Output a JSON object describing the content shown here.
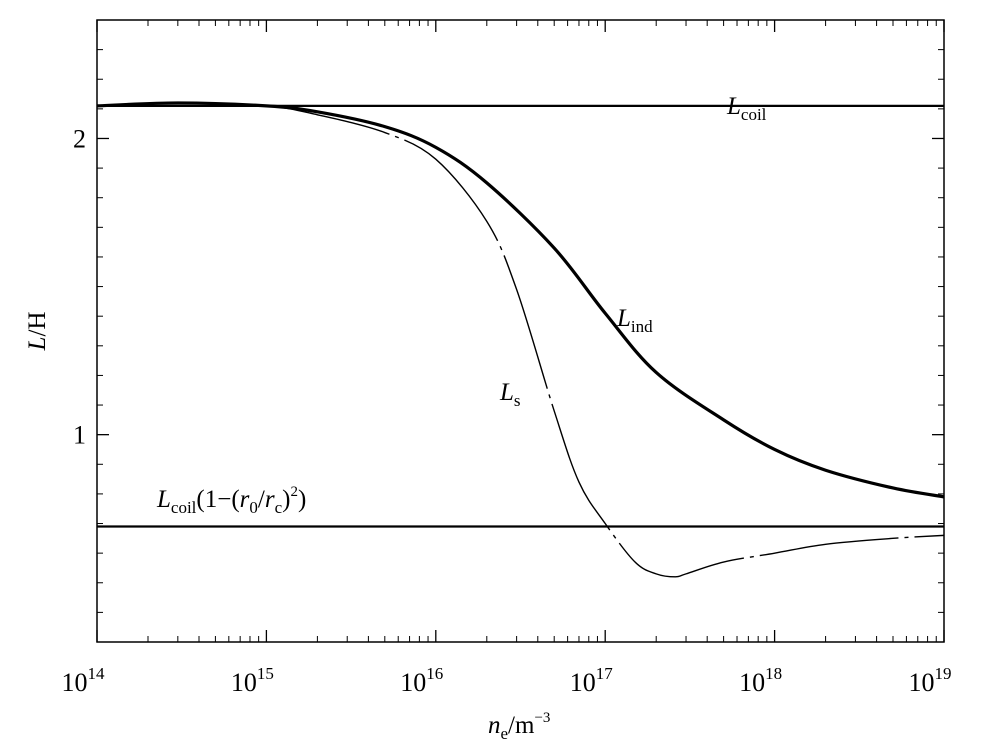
{
  "chart_data": {
    "type": "line",
    "xscale": "log",
    "xlim": [
      100000000000000.0,
      1e+19
    ],
    "ylim": [
      0.3,
      2.4
    ],
    "xticks": [
      {
        "base": "10",
        "exp": "14"
      },
      {
        "base": "10",
        "exp": "15"
      },
      {
        "base": "10",
        "exp": "16"
      },
      {
        "base": "10",
        "exp": "17"
      },
      {
        "base": "10",
        "exp": "18"
      },
      {
        "base": "10",
        "exp": "19"
      }
    ],
    "yticks": [
      "1",
      "2"
    ],
    "xlabel": {
      "main": "n",
      "sub": "e",
      "unit": "/m",
      "sup": "−3"
    },
    "ylabel": {
      "italic": "L",
      "rest": "/H"
    },
    "series": [
      {
        "key": "L_coil",
        "label": {
          "main": "L",
          "sub": "coil"
        },
        "style": "solid-medium",
        "x": [
          100000000000000.0,
          1e+19
        ],
        "y": [
          2.11,
          2.11
        ]
      },
      {
        "key": "L_ind",
        "label": {
          "main": "L",
          "sub": "ind"
        },
        "style": "solid-thick",
        "x": [
          100000000000000.0,
          300000000000000.0,
          1000000000000000.0,
          2000000000000000.0,
          5000000000000000.0,
          1e+16,
          2e+16,
          5e+16,
          1e+17,
          2e+17,
          5e+17,
          1e+18,
          2e+18,
          5e+18,
          1e+19
        ],
        "y": [
          2.11,
          2.12,
          2.11,
          2.09,
          2.04,
          1.97,
          1.85,
          1.63,
          1.41,
          1.21,
          1.05,
          0.95,
          0.88,
          0.82,
          0.79
        ]
      },
      {
        "key": "L_s",
        "label": {
          "main": "L",
          "sub": "s"
        },
        "style": "thin-dash-dot",
        "x": [
          100000000000000.0,
          300000000000000.0,
          1000000000000000.0,
          2000000000000000.0,
          5000000000000000.0,
          1e+16,
          2e+16,
          3e+16,
          5e+16,
          7e+16,
          1e+17,
          1.5e+17,
          2e+17,
          2.6e+17,
          3e+17,
          5e+17,
          1e+18,
          2e+18,
          5e+18,
          1e+19
        ],
        "y": [
          2.11,
          2.12,
          2.11,
          2.08,
          2.02,
          1.93,
          1.72,
          1.49,
          1.08,
          0.84,
          0.7,
          0.57,
          0.53,
          0.52,
          0.53,
          0.57,
          0.6,
          0.63,
          0.65,
          0.66
        ]
      },
      {
        "key": "L_coil_reduced",
        "label": {
          "main": "L",
          "sub": "coil",
          "rest1": "(1−(",
          "r0": "r",
          "r0sub": "0",
          "slash": "/",
          "rc": "r",
          "rcsub": "c",
          "close": ")",
          "exp": "2",
          "end": ")"
        },
        "style": "solid-medium",
        "x": [
          100000000000000.0,
          1e+19
        ],
        "y": [
          0.69,
          0.69
        ]
      }
    ],
    "grid": false,
    "legend": "none"
  }
}
